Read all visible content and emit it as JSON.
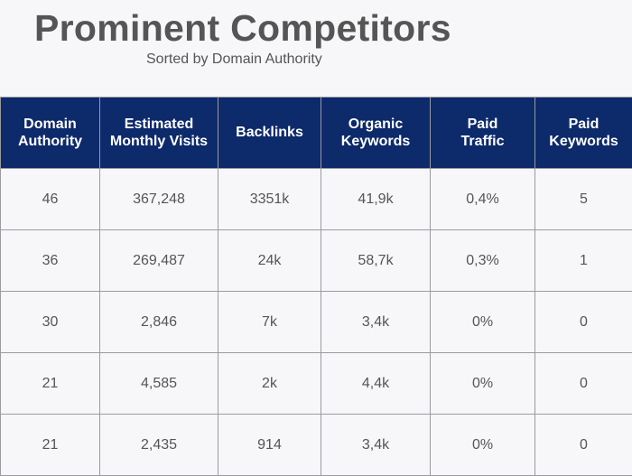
{
  "header": {
    "title": "Prominent Competitors",
    "subtitle": "Sorted by Domain Authority"
  },
  "table": {
    "columns": [
      "Domain Authority",
      "Estimated Monthly Visits",
      "Backlinks",
      "Organic Keywords",
      "Paid Traffic",
      "Paid Keywords"
    ],
    "rows": [
      [
        "46",
        "367,248",
        "3351k",
        "41,9k",
        "0,4%",
        "5"
      ],
      [
        "36",
        "269,487",
        "24k",
        "58,7k",
        "0,3%",
        "1"
      ],
      [
        "30",
        "2,846",
        "7k",
        "3,4k",
        "0%",
        "0"
      ],
      [
        "21",
        "4,585",
        "2k",
        "4,4k",
        "0%",
        "0"
      ],
      [
        "21",
        "2,435",
        "914",
        "3,4k",
        "0%",
        "0"
      ]
    ]
  }
}
